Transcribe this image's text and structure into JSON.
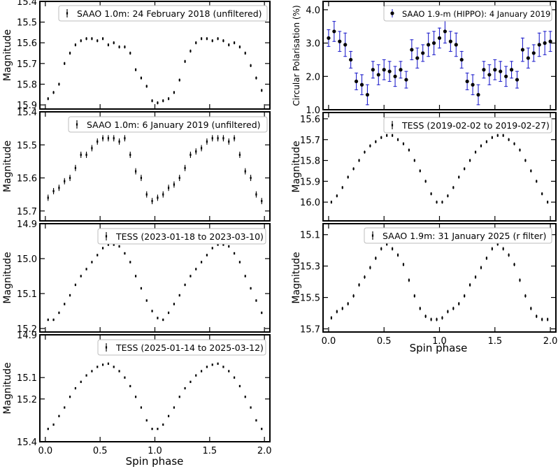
{
  "figure": {
    "left_x_axis_label": "Spin phase",
    "right_x_axis_label": "Spin phase"
  },
  "chart_data": [
    {
      "id": "L1",
      "type": "scatter",
      "legend": "SAAO 1.0m: 24 February 2018 (unfiltered)",
      "ylabel": "Magnitude",
      "ylim": [
        15.4,
        15.92
      ],
      "inverted": true,
      "yticks": [
        15.4,
        15.5,
        15.6,
        15.7,
        15.8,
        15.9
      ],
      "ytick_labels": [
        "15.4",
        "15.5",
        "15.6",
        "15.7",
        "15.8",
        "15.9"
      ],
      "xlim": [
        -0.05,
        2.05
      ],
      "marker": "bar",
      "color": "#000000",
      "x": [
        0.025,
        0.075,
        0.125,
        0.175,
        0.225,
        0.275,
        0.325,
        0.375,
        0.425,
        0.475,
        0.525,
        0.575,
        0.625,
        0.675,
        0.725,
        0.775,
        0.825,
        0.875,
        0.925,
        0.975,
        1.025,
        1.075,
        1.125,
        1.175,
        1.225,
        1.275,
        1.325,
        1.375,
        1.425,
        1.475,
        1.525,
        1.575,
        1.625,
        1.675,
        1.725,
        1.775,
        1.825,
        1.875,
        1.925,
        1.975
      ],
      "y": [
        15.87,
        15.84,
        15.8,
        15.7,
        15.65,
        15.61,
        15.59,
        15.58,
        15.58,
        15.59,
        15.58,
        15.61,
        15.6,
        15.62,
        15.62,
        15.65,
        15.73,
        15.77,
        15.81,
        15.88,
        15.89,
        15.88,
        15.87,
        15.84,
        15.78,
        15.69,
        15.64,
        15.6,
        15.58,
        15.58,
        15.59,
        15.58,
        15.59,
        15.61,
        15.6,
        15.62,
        15.65,
        15.71,
        15.77,
        15.83
      ],
      "err": [
        0.005
      ],
      "table": "see x/y"
    },
    {
      "id": "L2",
      "type": "scatter",
      "legend": "SAAO 1.0m: 6 January 2019 (unfiltered)",
      "ylabel": "Magnitude",
      "ylim": [
        15.4,
        15.73
      ],
      "inverted": true,
      "yticks": [
        15.4,
        15.5,
        15.6,
        15.7
      ],
      "ytick_labels": [
        "15.4",
        "15.5",
        "15.6",
        "15.7"
      ],
      "xlim": [
        -0.05,
        2.05
      ],
      "marker": "bar",
      "color": "#000000",
      "x": [
        0.025,
        0.075,
        0.125,
        0.175,
        0.225,
        0.275,
        0.325,
        0.375,
        0.425,
        0.475,
        0.525,
        0.575,
        0.625,
        0.675,
        0.725,
        0.775,
        0.825,
        0.875,
        0.925,
        0.975,
        1.025,
        1.075,
        1.125,
        1.175,
        1.225,
        1.275,
        1.325,
        1.375,
        1.425,
        1.475,
        1.525,
        1.575,
        1.625,
        1.675,
        1.725,
        1.775,
        1.825,
        1.875,
        1.925,
        1.975
      ],
      "y": [
        15.66,
        15.64,
        15.63,
        15.61,
        15.6,
        15.57,
        15.53,
        15.53,
        15.51,
        15.49,
        15.48,
        15.48,
        15.48,
        15.49,
        15.48,
        15.53,
        15.58,
        15.6,
        15.65,
        15.67,
        15.66,
        15.65,
        15.63,
        15.62,
        15.6,
        15.57,
        15.53,
        15.52,
        15.51,
        15.49,
        15.48,
        15.48,
        15.48,
        15.49,
        15.48,
        15.53,
        15.58,
        15.6,
        15.65,
        15.67
      ],
      "err": [
        0.008
      ]
    },
    {
      "id": "L3",
      "type": "scatter",
      "legend": "TESS (2023-01-18 to 2023-03-10)",
      "ylabel": "Magnitude",
      "ylim": [
        14.9,
        15.21
      ],
      "inverted": true,
      "yticks": [
        14.9,
        15.0,
        15.1,
        15.2
      ],
      "ytick_labels": [
        "14.9",
        "15.0",
        "15.1",
        "15.2"
      ],
      "xlim": [
        -0.05,
        2.05
      ],
      "marker": "bar",
      "color": "#000000",
      "x": [
        0.025,
        0.075,
        0.125,
        0.175,
        0.225,
        0.275,
        0.325,
        0.375,
        0.425,
        0.475,
        0.525,
        0.575,
        0.625,
        0.675,
        0.725,
        0.775,
        0.825,
        0.875,
        0.925,
        0.975,
        1.025,
        1.075,
        1.125,
        1.175,
        1.225,
        1.275,
        1.325,
        1.375,
        1.425,
        1.475,
        1.525,
        1.575,
        1.625,
        1.675,
        1.725,
        1.775,
        1.825,
        1.875,
        1.925,
        1.975
      ],
      "y": [
        15.175,
        15.175,
        15.155,
        15.13,
        15.105,
        15.075,
        15.05,
        15.03,
        15.01,
        14.99,
        14.97,
        14.96,
        14.96,
        14.965,
        14.985,
        15.01,
        15.05,
        15.085,
        15.12,
        15.15,
        15.17,
        15.175,
        15.155,
        15.13,
        15.105,
        15.075,
        15.05,
        15.03,
        15.01,
        14.99,
        14.97,
        14.96,
        14.96,
        14.965,
        14.985,
        15.01,
        15.05,
        15.085,
        15.12,
        15.155
      ],
      "err": [
        0.002
      ]
    },
    {
      "id": "L4",
      "type": "scatter",
      "legend": "TESS (2025-01-14 to 2025-03-12)",
      "ylabel": "Magnitude",
      "ylim": [
        14.9,
        15.4
      ],
      "inverted": true,
      "yticks": [
        14.9,
        15.1,
        15.2,
        15.4
      ],
      "ytick_labels": [
        "14.9",
        "15.1",
        "15.2",
        "15.4"
      ],
      "xlim": [
        -0.05,
        2.05
      ],
      "marker": "bar",
      "color": "#000000",
      "x": [
        0.025,
        0.075,
        0.125,
        0.175,
        0.225,
        0.275,
        0.325,
        0.375,
        0.425,
        0.475,
        0.525,
        0.575,
        0.625,
        0.675,
        0.725,
        0.775,
        0.825,
        0.875,
        0.925,
        0.975,
        1.025,
        1.075,
        1.125,
        1.175,
        1.225,
        1.275,
        1.325,
        1.375,
        1.425,
        1.475,
        1.525,
        1.575,
        1.625,
        1.675,
        1.725,
        1.775,
        1.825,
        1.875,
        1.925,
        1.975
      ],
      "y": [
        15.34,
        15.32,
        15.28,
        15.24,
        15.19,
        15.15,
        15.12,
        15.09,
        15.07,
        15.05,
        15.04,
        15.035,
        15.05,
        15.07,
        15.1,
        15.14,
        15.19,
        15.24,
        15.3,
        15.34,
        15.34,
        15.32,
        15.28,
        15.24,
        15.19,
        15.15,
        15.12,
        15.09,
        15.07,
        15.05,
        15.04,
        15.035,
        15.05,
        15.07,
        15.1,
        15.14,
        15.19,
        15.24,
        15.3,
        15.34
      ],
      "err": [
        0.002
      ],
      "xticks": [
        0.0,
        0.5,
        1.0,
        1.5,
        2.0
      ],
      "xtick_labels": [
        "0.0",
        "0.5",
        "1.0",
        "1.5",
        "2.0"
      ]
    },
    {
      "id": "R1",
      "type": "scatter",
      "legend": "SAAO 1.9-m (HIPPO): 4 January 2019",
      "ylabel": "Circular Polarisation (%)",
      "ylim": [
        1.0,
        4.25
      ],
      "inverted": false,
      "yticks": [
        1.0,
        2.0,
        3.0,
        4.0
      ],
      "ytick_labels": [
        "1.0",
        "2.0",
        "3.0",
        "4.0"
      ],
      "xlim": [
        -0.05,
        2.05
      ],
      "marker": "dot",
      "color": "#000000",
      "err_color": "#2222cc",
      "x": [
        0.0,
        0.05,
        0.1,
        0.15,
        0.2,
        0.25,
        0.3,
        0.35,
        0.4,
        0.45,
        0.5,
        0.55,
        0.6,
        0.65,
        0.7,
        0.75,
        0.8,
        0.85,
        0.9,
        0.95,
        1.0,
        1.05,
        1.1,
        1.15,
        1.2,
        1.25,
        1.3,
        1.35,
        1.4,
        1.45,
        1.5,
        1.55,
        1.6,
        1.65,
        1.7,
        1.75,
        1.8,
        1.85,
        1.9,
        1.95,
        2.0
      ],
      "y": [
        3.15,
        3.35,
        3.05,
        2.95,
        2.5,
        1.85,
        1.75,
        1.45,
        2.2,
        2.05,
        2.2,
        2.15,
        2.0,
        2.2,
        1.9,
        2.8,
        2.55,
        2.7,
        2.95,
        3.0,
        3.15,
        3.35,
        3.05,
        2.95,
        2.5,
        1.85,
        1.75,
        1.45,
        2.2,
        2.05,
        2.2,
        2.15,
        2.0,
        2.2,
        1.9,
        2.8,
        2.55,
        2.7,
        2.95,
        3.0,
        3.05
      ],
      "err": [
        0.25,
        0.3,
        0.3,
        0.35,
        0.25,
        0.25,
        0.3,
        0.3,
        0.25,
        0.3,
        0.3,
        0.3,
        0.3,
        0.25,
        0.25,
        0.3,
        0.3,
        0.25,
        0.35,
        0.35,
        0.3,
        0.35,
        0.3,
        0.35,
        0.25,
        0.25,
        0.3,
        0.3,
        0.25,
        0.3,
        0.3,
        0.3,
        0.3,
        0.25,
        0.25,
        0.35,
        0.3,
        0.25,
        0.35,
        0.35,
        0.3
      ]
    },
    {
      "id": "R2",
      "type": "scatter",
      "legend": "TESS (2019-02-02 to 2019-02-27)",
      "ylabel": "Magnitude",
      "ylim": [
        15.57,
        16.09
      ],
      "inverted": true,
      "yticks": [
        15.6,
        15.7,
        15.8,
        15.9,
        16.0
      ],
      "ytick_labels": [
        "15.6",
        "15.7",
        "15.8",
        "15.9",
        "16.0"
      ],
      "xlim": [
        -0.05,
        2.05
      ],
      "marker": "bar",
      "color": "#000000",
      "x": [
        0.025,
        0.075,
        0.125,
        0.175,
        0.225,
        0.275,
        0.325,
        0.375,
        0.425,
        0.475,
        0.525,
        0.575,
        0.625,
        0.675,
        0.725,
        0.775,
        0.825,
        0.875,
        0.925,
        0.975,
        1.025,
        1.075,
        1.125,
        1.175,
        1.225,
        1.275,
        1.325,
        1.375,
        1.425,
        1.475,
        1.525,
        1.575,
        1.625,
        1.675,
        1.725,
        1.775,
        1.825,
        1.875,
        1.925,
        1.975
      ],
      "y": [
        16.0,
        15.97,
        15.93,
        15.88,
        15.84,
        15.8,
        15.76,
        15.73,
        15.71,
        15.69,
        15.68,
        15.68,
        15.7,
        15.72,
        15.75,
        15.8,
        15.85,
        15.9,
        15.96,
        16.0,
        16.0,
        15.97,
        15.93,
        15.88,
        15.84,
        15.8,
        15.76,
        15.73,
        15.71,
        15.69,
        15.68,
        15.68,
        15.7,
        15.72,
        15.75,
        15.8,
        15.85,
        15.9,
        15.96,
        16.0
      ],
      "err": [
        0.005
      ]
    },
    {
      "id": "R3",
      "type": "scatter",
      "legend": "SAAO 1.9m: 31 January 2025 (r filter)",
      "ylabel": "Magnitude",
      "ylim": [
        15.03,
        15.72
      ],
      "inverted": true,
      "yticks": [
        15.1,
        15.3,
        15.5,
        15.7
      ],
      "ytick_labels": [
        "15.1",
        "15.3",
        "15.5",
        "15.7"
      ],
      "xlim": [
        -0.05,
        2.05
      ],
      "marker": "bar",
      "color": "#000000",
      "x": [
        0.025,
        0.075,
        0.125,
        0.175,
        0.225,
        0.275,
        0.325,
        0.375,
        0.425,
        0.475,
        0.525,
        0.575,
        0.625,
        0.675,
        0.725,
        0.775,
        0.825,
        0.875,
        0.925,
        0.975,
        1.025,
        1.075,
        1.125,
        1.175,
        1.225,
        1.275,
        1.325,
        1.375,
        1.425,
        1.475,
        1.525,
        1.575,
        1.625,
        1.675,
        1.725,
        1.775,
        1.825,
        1.875,
        1.925,
        1.975
      ],
      "y": [
        15.63,
        15.59,
        15.57,
        15.54,
        15.49,
        15.42,
        15.37,
        15.31,
        15.25,
        15.19,
        15.16,
        15.19,
        15.23,
        15.29,
        15.39,
        15.49,
        15.57,
        15.62,
        15.64,
        15.64,
        15.63,
        15.59,
        15.57,
        15.54,
        15.49,
        15.42,
        15.37,
        15.31,
        15.25,
        15.19,
        15.16,
        15.19,
        15.23,
        15.29,
        15.39,
        15.49,
        15.57,
        15.62,
        15.64,
        15.64
      ],
      "err": [
        0.008
      ],
      "xticks": [
        0.0,
        0.5,
        1.0,
        1.5,
        2.0
      ],
      "xtick_labels": [
        "0.0",
        "0.5",
        "1.0",
        "1.5",
        "2.0"
      ]
    }
  ]
}
